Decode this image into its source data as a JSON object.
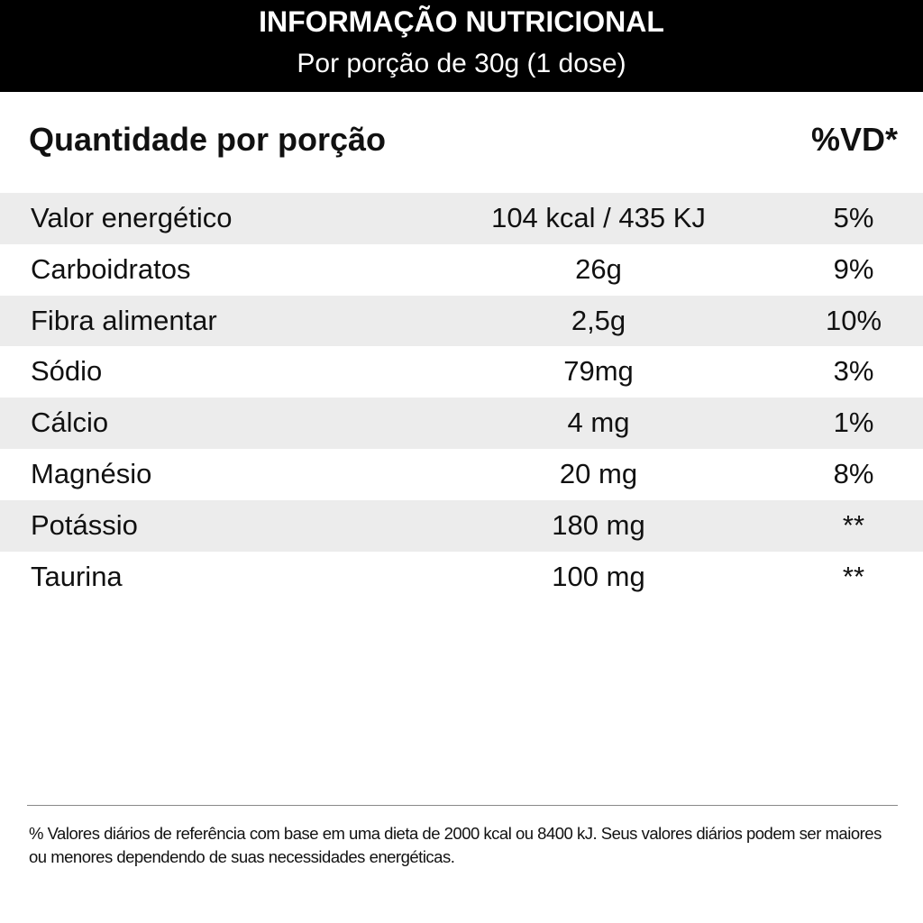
{
  "header": {
    "title": "INFORMAÇÃO NUTRICIONAL",
    "subtitle": "Por porção de 30g (1 dose)"
  },
  "columns": {
    "quantity_label": "Quantidade por porção",
    "vd_label": "%VD*"
  },
  "rows": [
    {
      "name": "Valor energético",
      "amount": "104 kcal / 435 KJ",
      "vd": "5%"
    },
    {
      "name": "Carboidratos",
      "amount": "26g",
      "vd": "9%"
    },
    {
      "name": "Fibra alimentar",
      "amount": "2,5g",
      "vd": "10%"
    },
    {
      "name": "Sódio",
      "amount": "79mg",
      "vd": "3%"
    },
    {
      "name": "Cálcio",
      "amount": "4 mg",
      "vd": "1%"
    },
    {
      "name": "Magnésio",
      "amount": "20 mg",
      "vd": "8%"
    },
    {
      "name": "Potássio",
      "amount": "180 mg",
      "vd": "**"
    },
    {
      "name": "Taurina",
      "amount": "100 mg",
      "vd": "**"
    }
  ],
  "footnote": "% Valores diários de referência com base em uma dieta de 2000 kcal ou 8400 kJ. Seus valores diários podem ser maiores ou menores dependendo de suas necessidades energéticas.",
  "colors": {
    "header_bg": "#000000",
    "row_shade": "#ececec"
  }
}
